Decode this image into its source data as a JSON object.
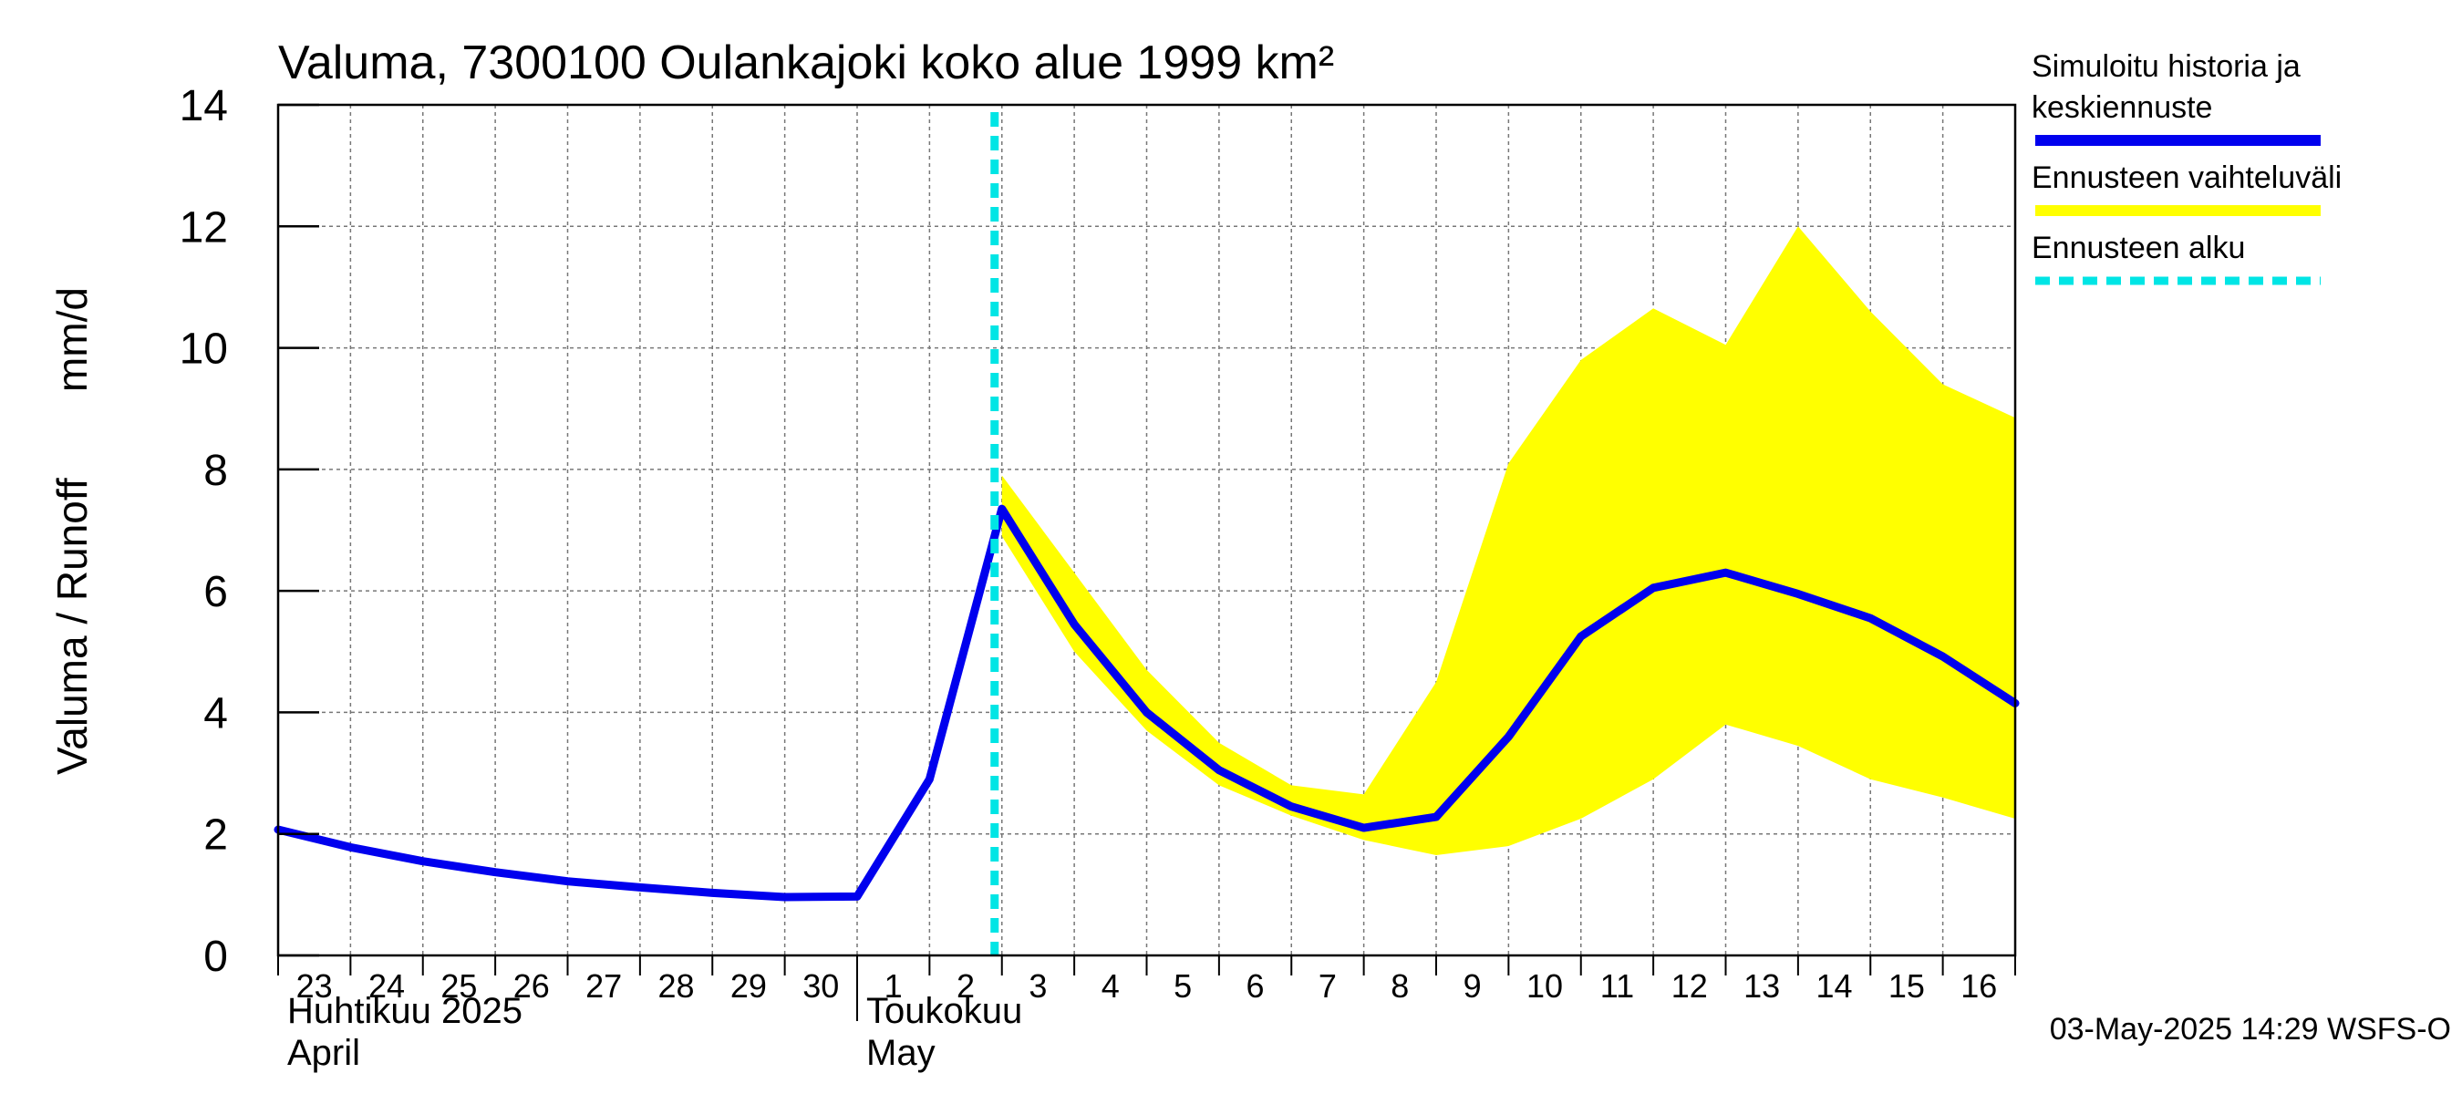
{
  "chart_data": {
    "type": "line",
    "title": "Valuma, 7300100 Oulankajoki koko alue 1999 km²",
    "ylabel_fi": "Valuma / Runoff",
    "ylabel_unit": "mm/d",
    "ylim": [
      0,
      14
    ],
    "yticks": [
      "0",
      "2",
      "4",
      "6",
      "8",
      "10",
      "12",
      "14"
    ],
    "x_dates": [
      "2025-04-23",
      "2025-04-24",
      "2025-04-25",
      "2025-04-26",
      "2025-04-27",
      "2025-04-28",
      "2025-04-29",
      "2025-04-30",
      "2025-05-01",
      "2025-05-02",
      "2025-05-03",
      "2025-05-04",
      "2025-05-05",
      "2025-05-06",
      "2025-05-07",
      "2025-05-08",
      "2025-05-09",
      "2025-05-10",
      "2025-05-11",
      "2025-05-12",
      "2025-05-13",
      "2025-05-14",
      "2025-05-15",
      "2025-05-16",
      "2025-05-17"
    ],
    "day_labels": [
      "23",
      "24",
      "25",
      "26",
      "27",
      "28",
      "29",
      "30",
      "1",
      "2",
      "3",
      "4",
      "5",
      "6",
      "7",
      "8",
      "9",
      "10",
      "11",
      "12",
      "13",
      "14",
      "15",
      "16"
    ],
    "month_labels": [
      {
        "fi": "Huhtikuu  2025",
        "en": "April",
        "start_index": 0
      },
      {
        "fi": "Toukokuu",
        "en": "May",
        "start_index": 8
      }
    ],
    "forecast_start_index": 10,
    "series": [
      {
        "name": "Simuloitu historia ja keskiennuste",
        "color": "#0000ee",
        "values": [
          2.07,
          1.78,
          1.55,
          1.37,
          1.22,
          1.12,
          1.03,
          0.96,
          0.97,
          2.9,
          7.35,
          5.45,
          4.0,
          3.05,
          2.45,
          2.1,
          2.28,
          3.6,
          5.25,
          6.05,
          6.3,
          5.95,
          5.55,
          4.92,
          4.15
        ]
      }
    ],
    "band": {
      "name": "Ennusteen vaihteluväli",
      "color": "#ffff00",
      "start_index": 10,
      "upper": [
        7.9,
        6.3,
        4.7,
        3.5,
        2.8,
        2.65,
        4.5,
        8.1,
        9.8,
        10.65,
        10.05,
        12.0,
        10.6,
        9.4,
        8.85
      ],
      "lower": [
        6.9,
        5.0,
        3.7,
        2.8,
        2.3,
        1.9,
        1.65,
        1.8,
        2.25,
        2.9,
        3.8,
        3.45,
        2.9,
        2.6,
        2.25
      ]
    },
    "legend": {
      "placement": "right",
      "items": [
        {
          "label_lines": [
            "Simuloitu historia ja",
            "keskiennuste"
          ],
          "color": "#0000ee",
          "style": "solid"
        },
        {
          "label_lines": [
            "Ennusteen vaihteluväli"
          ],
          "color": "#ffff00",
          "style": "solid"
        },
        {
          "label_lines": [
            "Ennusteen alku"
          ],
          "color": "#00e5e5",
          "style": "dashed"
        }
      ]
    },
    "forecast_line_color": "#00e5e5",
    "grid": true,
    "footer": "03-May-2025 14:29 WSFS-O"
  }
}
